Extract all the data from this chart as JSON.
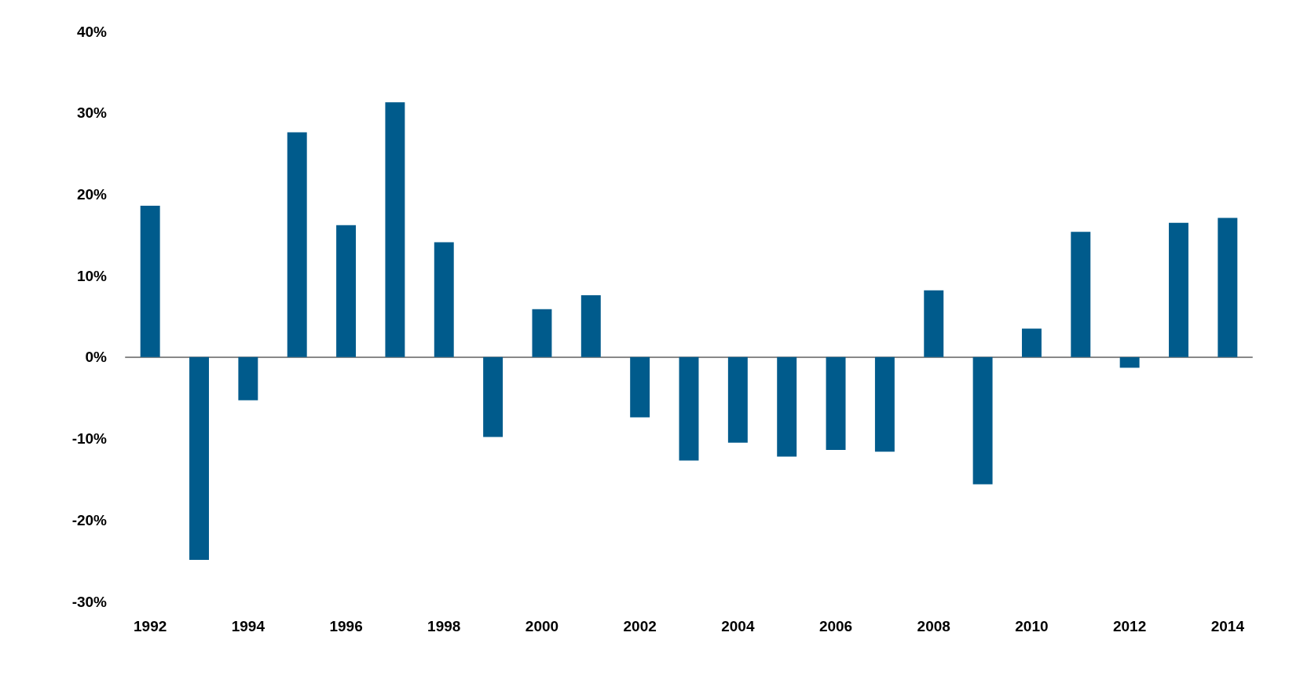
{
  "chart_data": {
    "type": "bar",
    "categories": [
      "1992",
      null,
      "1994",
      null,
      "1996",
      null,
      "1998",
      null,
      "2000",
      null,
      "2002",
      null,
      "2004",
      null,
      "2006",
      null,
      "2008",
      null,
      "2010",
      null,
      "2012",
      null,
      "2014"
    ],
    "values": [
      18.6,
      -24.9,
      -5.3,
      27.6,
      16.2,
      31.3,
      14.1,
      -9.8,
      5.9,
      7.6,
      -7.4,
      -12.7,
      -10.5,
      -12.2,
      -11.4,
      -11.6,
      8.2,
      -15.6,
      3.5,
      15.4,
      -1.3,
      16.5,
      17.1
    ],
    "color": "#005b8c",
    "ylim": [
      -30,
      40
    ],
    "yticks": [
      {
        "value": -30,
        "label": "-30%"
      },
      {
        "value": -20,
        "label": "-20%"
      },
      {
        "value": -10,
        "label": "-10%"
      },
      {
        "value": 0,
        "label": "0%"
      },
      {
        "value": 10,
        "label": "10%"
      },
      {
        "value": 20,
        "label": "20%"
      },
      {
        "value": 30,
        "label": "30%"
      },
      {
        "value": 40,
        "label": "40%"
      }
    ],
    "orientation": "vertical"
  }
}
